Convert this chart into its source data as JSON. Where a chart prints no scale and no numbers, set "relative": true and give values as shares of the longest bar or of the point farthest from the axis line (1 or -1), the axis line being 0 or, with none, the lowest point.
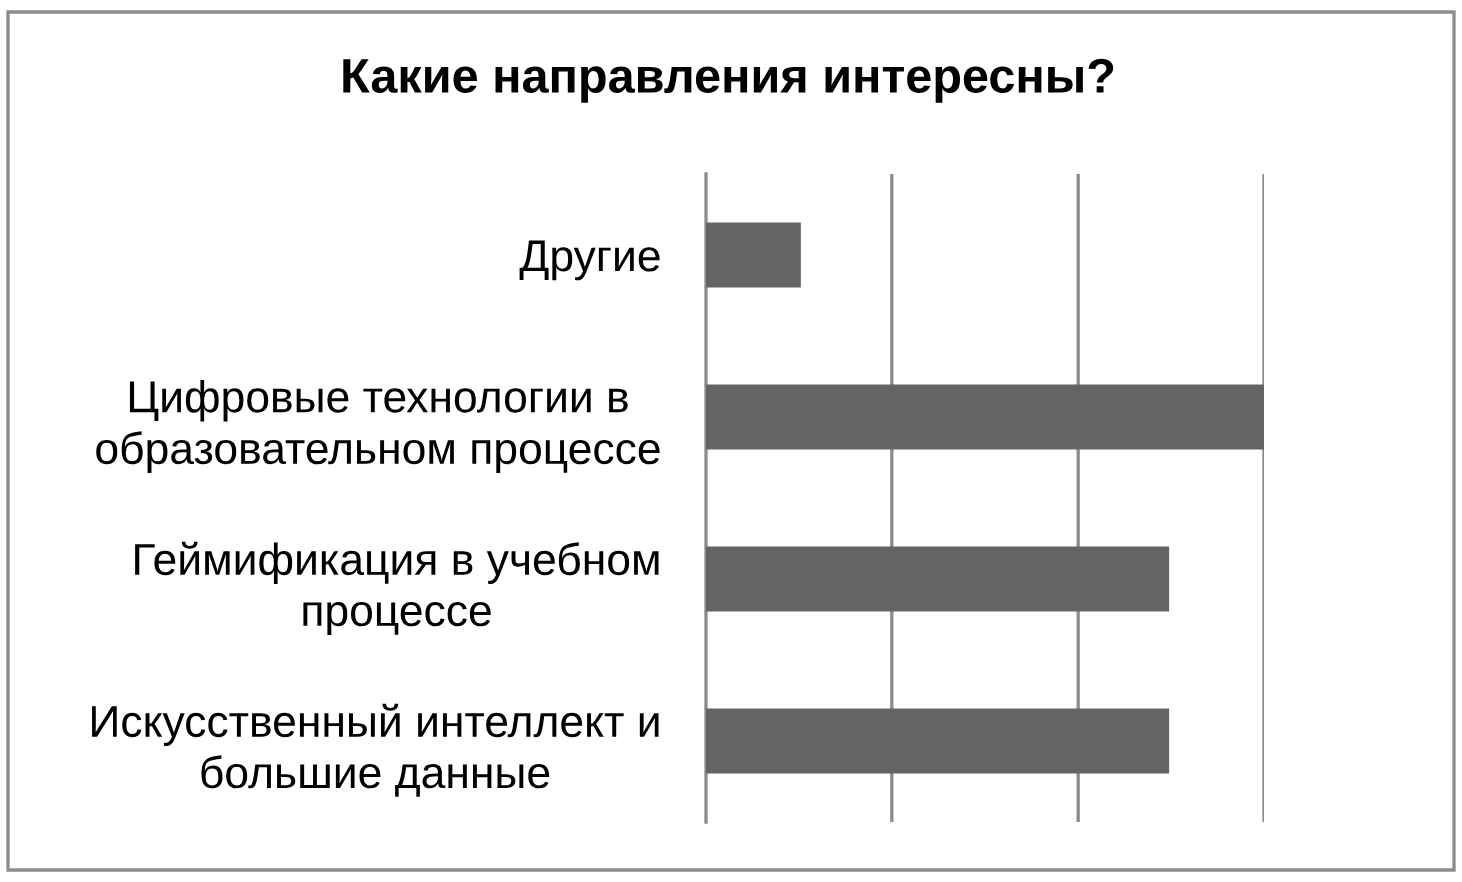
{
  "chart_data": {
    "type": "bar",
    "orientation": "horizontal",
    "relative": true,
    "title": "Какие направления интересны?",
    "categories": [
      "Другие",
      "Цифровые технологии в\nобразовательном процессе",
      "Геймификация в учебном\nпроцессе",
      "Искусственный интеллект и\nбольшие данные"
    ],
    "values": [
      0.17,
      1,
      0.83,
      0.83
    ],
    "color": "#646464",
    "tick_labels": "y",
    "ref_lines": [
      {
        "axis": "x",
        "value": 0.333,
        "color": "#8c8c8c"
      },
      {
        "axis": "x",
        "value": 0.667,
        "color": "#8c8c8c"
      },
      {
        "axis": "x",
        "value": 1,
        "color": "#8c8c8c"
      }
    ]
  }
}
